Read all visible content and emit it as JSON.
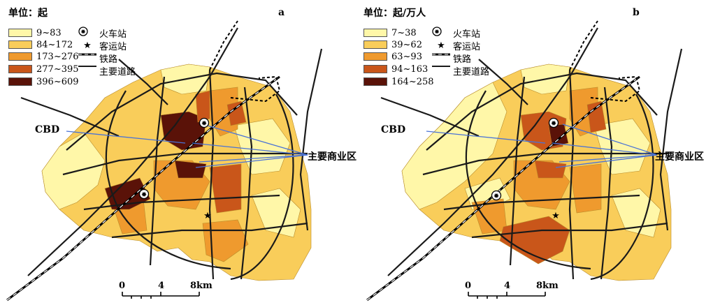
{
  "panels": [
    {
      "letter": "a",
      "unit": "单位：起",
      "classes": [
        {
          "label": "9~83",
          "color": "#FFF7A8"
        },
        {
          "label": "84~172",
          "color": "#F9CD5A"
        },
        {
          "label": "173~276",
          "color": "#EF9A2E"
        },
        {
          "label": "277~395",
          "color": "#C9561A"
        },
        {
          "label": "396~609",
          "color": "#5A1208"
        }
      ]
    },
    {
      "letter": "b",
      "unit": "单位：起/万人",
      "classes": [
        {
          "label": "7~38",
          "color": "#FFF7A8"
        },
        {
          "label": "39~62",
          "color": "#F9CD5A"
        },
        {
          "label": "63~93",
          "color": "#EF9A2E"
        },
        {
          "label": "94~163",
          "color": "#C9561A"
        },
        {
          "label": "164~258",
          "color": "#5A1208"
        }
      ]
    }
  ],
  "symbols": {
    "railway_station": "火车站",
    "bus_station": "客运站",
    "railway": "铁路",
    "main_road": "主要道路"
  },
  "labels": {
    "cbd": "CBD",
    "commercial": "主要商业区"
  },
  "scale": {
    "t0": "0",
    "t1": "4",
    "t2": "8km"
  },
  "colors": {
    "road": "#1a1a1a",
    "pointer": "#4a73d6"
  }
}
